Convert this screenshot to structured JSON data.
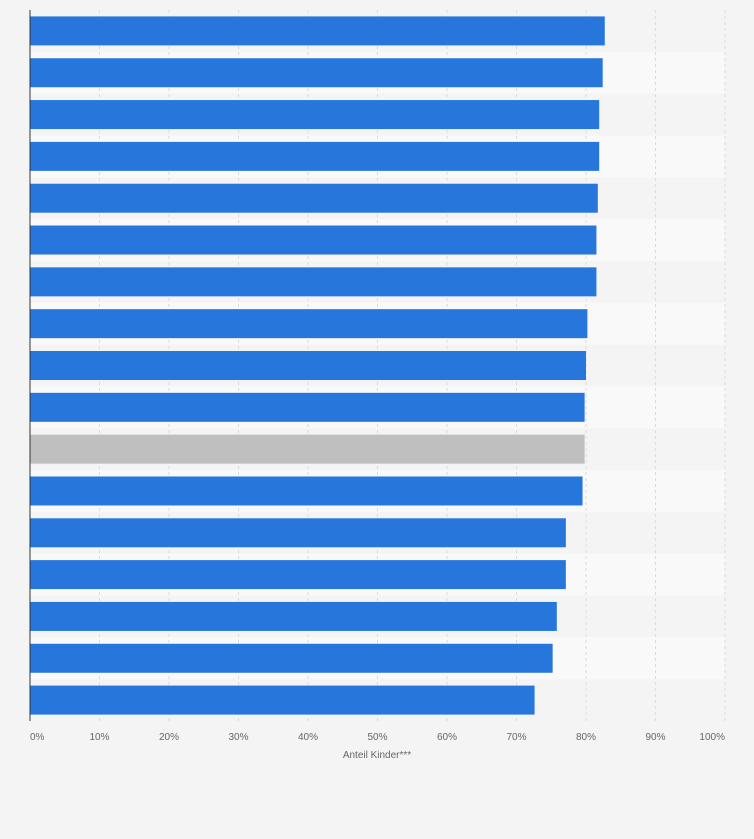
{
  "chart_data": {
    "type": "bar",
    "orientation": "horizontal",
    "categories": [
      "",
      "",
      "",
      "",
      "",
      "",
      "",
      "",
      "",
      "",
      "",
      "",
      "",
      "",
      "",
      "",
      ""
    ],
    "values": [
      82.7,
      82.4,
      81.9,
      81.9,
      81.7,
      81.5,
      81.5,
      80.2,
      80.0,
      79.8,
      79.8,
      79.5,
      77.1,
      77.1,
      75.8,
      75.2,
      72.6
    ],
    "highlight_index": 10,
    "colors": {
      "bar": "#2776dc",
      "highlight": "#bfbfbf",
      "band": "#f9f9f9",
      "grid": "#dcdcdc",
      "axis": "#333333"
    },
    "xlim": [
      0,
      100
    ],
    "xticks": [
      0,
      10,
      20,
      30,
      40,
      50,
      60,
      70,
      80,
      90,
      100
    ],
    "xtick_labels": [
      "0%",
      "10%",
      "20%",
      "30%",
      "40%",
      "50%",
      "60%",
      "70%",
      "80%",
      "90%",
      "100%"
    ],
    "xlabel": "Anteil Kinder***",
    "title": "",
    "grid": true,
    "legend": "none"
  }
}
